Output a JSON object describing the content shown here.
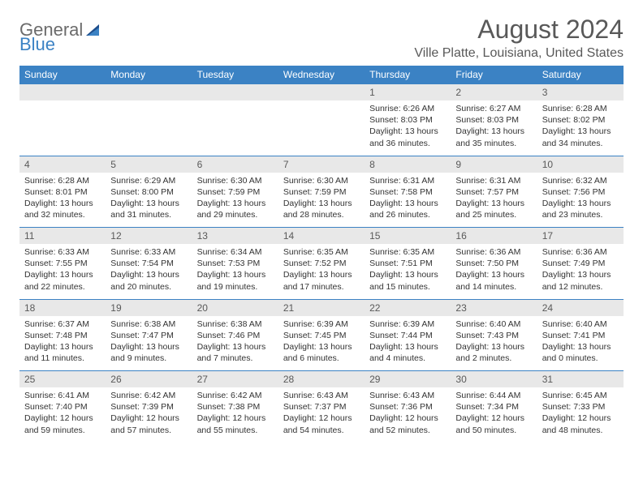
{
  "brand": {
    "part1": "General",
    "part2": "Blue"
  },
  "title": "August 2024",
  "location": "Ville Platte, Louisiana, United States",
  "day_headers": [
    "Sunday",
    "Monday",
    "Tuesday",
    "Wednesday",
    "Thursday",
    "Friday",
    "Saturday"
  ],
  "colors": {
    "header_bg": "#3b82c4",
    "header_text": "#ffffff",
    "daynum_bg": "#e8e8e8",
    "cell_border": "#3b82c4",
    "text": "#333333",
    "title_text": "#595959",
    "logo_gray": "#6b6b6b",
    "logo_blue": "#3b82c4",
    "page_bg": "#ffffff"
  },
  "typography": {
    "title_fontsize": 32,
    "location_fontsize": 16,
    "header_fontsize": 12,
    "daynum_fontsize": 12,
    "cell_fontsize": 10.5
  },
  "weeks": [
    [
      null,
      null,
      null,
      null,
      {
        "n": "1",
        "sr": "Sunrise: 6:26 AM",
        "ss": "Sunset: 8:03 PM",
        "dl1": "Daylight: 13 hours",
        "dl2": "and 36 minutes."
      },
      {
        "n": "2",
        "sr": "Sunrise: 6:27 AM",
        "ss": "Sunset: 8:03 PM",
        "dl1": "Daylight: 13 hours",
        "dl2": "and 35 minutes."
      },
      {
        "n": "3",
        "sr": "Sunrise: 6:28 AM",
        "ss": "Sunset: 8:02 PM",
        "dl1": "Daylight: 13 hours",
        "dl2": "and 34 minutes."
      }
    ],
    [
      {
        "n": "4",
        "sr": "Sunrise: 6:28 AM",
        "ss": "Sunset: 8:01 PM",
        "dl1": "Daylight: 13 hours",
        "dl2": "and 32 minutes."
      },
      {
        "n": "5",
        "sr": "Sunrise: 6:29 AM",
        "ss": "Sunset: 8:00 PM",
        "dl1": "Daylight: 13 hours",
        "dl2": "and 31 minutes."
      },
      {
        "n": "6",
        "sr": "Sunrise: 6:30 AM",
        "ss": "Sunset: 7:59 PM",
        "dl1": "Daylight: 13 hours",
        "dl2": "and 29 minutes."
      },
      {
        "n": "7",
        "sr": "Sunrise: 6:30 AM",
        "ss": "Sunset: 7:59 PM",
        "dl1": "Daylight: 13 hours",
        "dl2": "and 28 minutes."
      },
      {
        "n": "8",
        "sr": "Sunrise: 6:31 AM",
        "ss": "Sunset: 7:58 PM",
        "dl1": "Daylight: 13 hours",
        "dl2": "and 26 minutes."
      },
      {
        "n": "9",
        "sr": "Sunrise: 6:31 AM",
        "ss": "Sunset: 7:57 PM",
        "dl1": "Daylight: 13 hours",
        "dl2": "and 25 minutes."
      },
      {
        "n": "10",
        "sr": "Sunrise: 6:32 AM",
        "ss": "Sunset: 7:56 PM",
        "dl1": "Daylight: 13 hours",
        "dl2": "and 23 minutes."
      }
    ],
    [
      {
        "n": "11",
        "sr": "Sunrise: 6:33 AM",
        "ss": "Sunset: 7:55 PM",
        "dl1": "Daylight: 13 hours",
        "dl2": "and 22 minutes."
      },
      {
        "n": "12",
        "sr": "Sunrise: 6:33 AM",
        "ss": "Sunset: 7:54 PM",
        "dl1": "Daylight: 13 hours",
        "dl2": "and 20 minutes."
      },
      {
        "n": "13",
        "sr": "Sunrise: 6:34 AM",
        "ss": "Sunset: 7:53 PM",
        "dl1": "Daylight: 13 hours",
        "dl2": "and 19 minutes."
      },
      {
        "n": "14",
        "sr": "Sunrise: 6:35 AM",
        "ss": "Sunset: 7:52 PM",
        "dl1": "Daylight: 13 hours",
        "dl2": "and 17 minutes."
      },
      {
        "n": "15",
        "sr": "Sunrise: 6:35 AM",
        "ss": "Sunset: 7:51 PM",
        "dl1": "Daylight: 13 hours",
        "dl2": "and 15 minutes."
      },
      {
        "n": "16",
        "sr": "Sunrise: 6:36 AM",
        "ss": "Sunset: 7:50 PM",
        "dl1": "Daylight: 13 hours",
        "dl2": "and 14 minutes."
      },
      {
        "n": "17",
        "sr": "Sunrise: 6:36 AM",
        "ss": "Sunset: 7:49 PM",
        "dl1": "Daylight: 13 hours",
        "dl2": "and 12 minutes."
      }
    ],
    [
      {
        "n": "18",
        "sr": "Sunrise: 6:37 AM",
        "ss": "Sunset: 7:48 PM",
        "dl1": "Daylight: 13 hours",
        "dl2": "and 11 minutes."
      },
      {
        "n": "19",
        "sr": "Sunrise: 6:38 AM",
        "ss": "Sunset: 7:47 PM",
        "dl1": "Daylight: 13 hours",
        "dl2": "and 9 minutes."
      },
      {
        "n": "20",
        "sr": "Sunrise: 6:38 AM",
        "ss": "Sunset: 7:46 PM",
        "dl1": "Daylight: 13 hours",
        "dl2": "and 7 minutes."
      },
      {
        "n": "21",
        "sr": "Sunrise: 6:39 AM",
        "ss": "Sunset: 7:45 PM",
        "dl1": "Daylight: 13 hours",
        "dl2": "and 6 minutes."
      },
      {
        "n": "22",
        "sr": "Sunrise: 6:39 AM",
        "ss": "Sunset: 7:44 PM",
        "dl1": "Daylight: 13 hours",
        "dl2": "and 4 minutes."
      },
      {
        "n": "23",
        "sr": "Sunrise: 6:40 AM",
        "ss": "Sunset: 7:43 PM",
        "dl1": "Daylight: 13 hours",
        "dl2": "and 2 minutes."
      },
      {
        "n": "24",
        "sr": "Sunrise: 6:40 AM",
        "ss": "Sunset: 7:41 PM",
        "dl1": "Daylight: 13 hours",
        "dl2": "and 0 minutes."
      }
    ],
    [
      {
        "n": "25",
        "sr": "Sunrise: 6:41 AM",
        "ss": "Sunset: 7:40 PM",
        "dl1": "Daylight: 12 hours",
        "dl2": "and 59 minutes."
      },
      {
        "n": "26",
        "sr": "Sunrise: 6:42 AM",
        "ss": "Sunset: 7:39 PM",
        "dl1": "Daylight: 12 hours",
        "dl2": "and 57 minutes."
      },
      {
        "n": "27",
        "sr": "Sunrise: 6:42 AM",
        "ss": "Sunset: 7:38 PM",
        "dl1": "Daylight: 12 hours",
        "dl2": "and 55 minutes."
      },
      {
        "n": "28",
        "sr": "Sunrise: 6:43 AM",
        "ss": "Sunset: 7:37 PM",
        "dl1": "Daylight: 12 hours",
        "dl2": "and 54 minutes."
      },
      {
        "n": "29",
        "sr": "Sunrise: 6:43 AM",
        "ss": "Sunset: 7:36 PM",
        "dl1": "Daylight: 12 hours",
        "dl2": "and 52 minutes."
      },
      {
        "n": "30",
        "sr": "Sunrise: 6:44 AM",
        "ss": "Sunset: 7:34 PM",
        "dl1": "Daylight: 12 hours",
        "dl2": "and 50 minutes."
      },
      {
        "n": "31",
        "sr": "Sunrise: 6:45 AM",
        "ss": "Sunset: 7:33 PM",
        "dl1": "Daylight: 12 hours",
        "dl2": "and 48 minutes."
      }
    ]
  ]
}
